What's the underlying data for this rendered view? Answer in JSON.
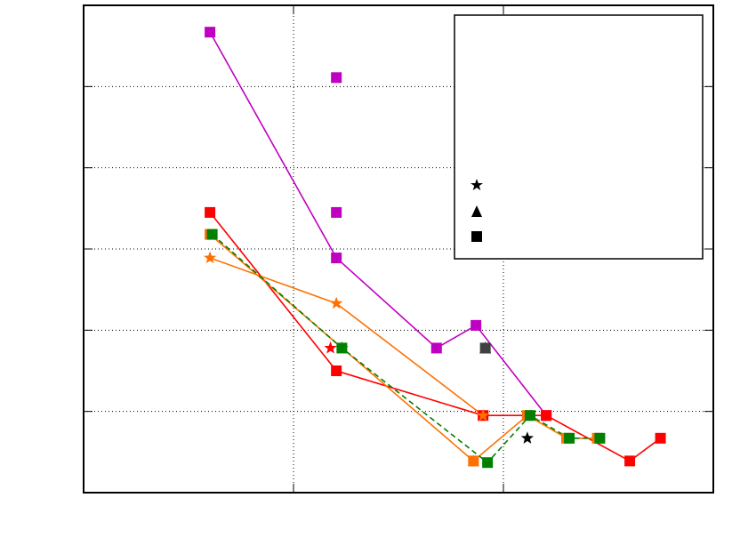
{
  "chart_data": {
    "type": "line",
    "xscale": "log",
    "grid": true,
    "xlim": [
      1,
      1000
    ],
    "xticks": [
      10,
      100
    ],
    "ylim": [
      0,
      6
    ],
    "yticks": [
      1,
      2,
      3,
      4,
      5
    ],
    "series": [
      {
        "color": "#c000c0",
        "marker": "square",
        "line": "solid",
        "x": [
          4,
          16,
          48,
          74,
          160
        ],
        "values": [
          5.67,
          2.89,
          1.78,
          2.06,
          0.95
        ]
      },
      {
        "color": "#c000c0",
        "marker": "square",
        "line": "none",
        "x": [
          16,
          16
        ],
        "values": [
          5.11,
          3.45
        ]
      },
      {
        "color": "#ff0000",
        "marker": "square",
        "line": "solid",
        "x": [
          4,
          16,
          80,
          160,
          400,
          560
        ],
        "values": [
          3.45,
          1.5,
          0.95,
          0.95,
          0.39,
          0.67
        ]
      },
      {
        "color": "#ff0000",
        "marker": "star",
        "line": "none",
        "x": [
          15
        ],
        "values": [
          1.78
        ]
      },
      {
        "color": "#ff7000",
        "marker": "star",
        "line": "solid",
        "x": [
          4,
          16,
          80
        ],
        "values": [
          2.89,
          2.33,
          0.95
        ]
      },
      {
        "color": "#ff7000",
        "marker": "square",
        "line": "solid",
        "x": [
          4,
          72,
          130,
          200,
          280
        ],
        "values": [
          3.18,
          0.39,
          0.95,
          0.67,
          0.67
        ]
      },
      {
        "color": "#ff7000",
        "marker": "triangle",
        "line": "none",
        "x": [
          72
        ],
        "values": [
          0.39
        ]
      },
      {
        "color": "#008000",
        "marker": "square",
        "line": "dashed",
        "x": [
          4.1,
          17,
          84,
          134,
          206,
          288
        ],
        "values": [
          3.18,
          1.78,
          0.37,
          0.95,
          0.67,
          0.67
        ]
      },
      {
        "color": "#008000",
        "marker": "star",
        "line": "none",
        "x": [
          17
        ],
        "values": [
          1.78
        ]
      },
      {
        "color": "#000000",
        "marker": "star",
        "line": "none",
        "x": [
          130
        ],
        "values": [
          0.67
        ]
      },
      {
        "color": "#000000",
        "marker": "triangle",
        "line": "none",
        "x": [
          82
        ],
        "values": [
          1.78
        ]
      },
      {
        "color": "#404040",
        "marker": "square",
        "line": "none",
        "x": [
          82
        ],
        "values": [
          1.78
        ]
      }
    ]
  }
}
